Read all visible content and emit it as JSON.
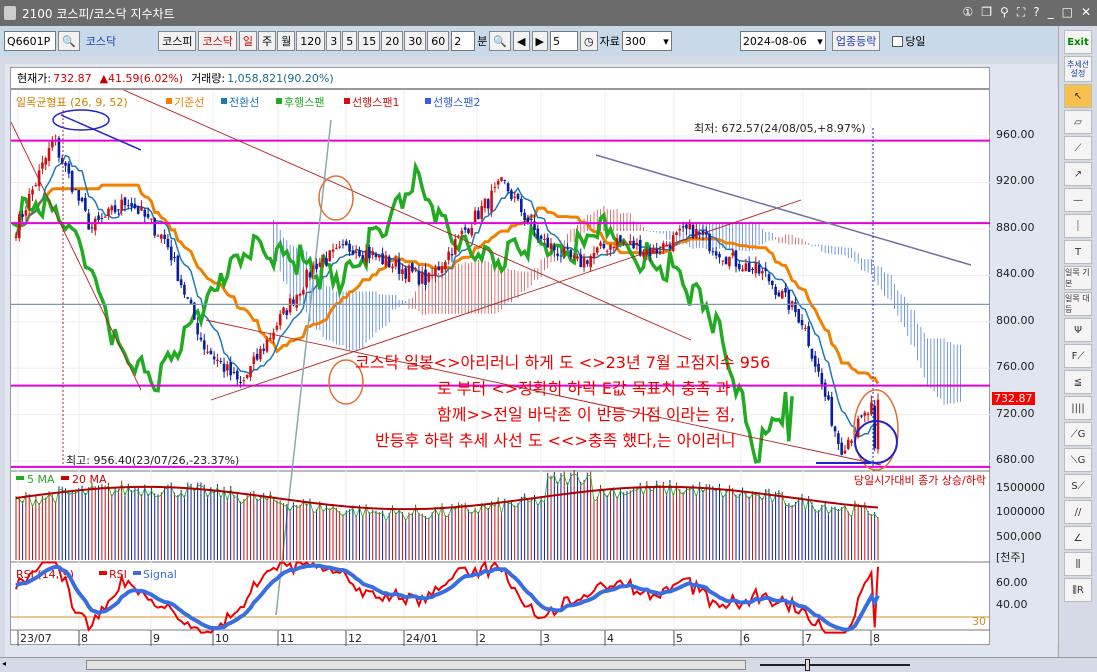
{
  "window": {
    "title": "2100 코스피/코스닥 지수차트",
    "controls": [
      "1",
      "restore",
      "pin",
      "fullscreen",
      "?",
      "minimize",
      "maximize",
      "close"
    ]
  },
  "toolbar": {
    "code": "Q6601P",
    "name": "코스닥",
    "market_buttons": [
      "코스피",
      "코스닥"
    ],
    "period_buttons": [
      "일",
      "주",
      "월",
      "120",
      "3",
      "5",
      "15",
      "20",
      "30",
      "60"
    ],
    "minute_value": "2",
    "minute_label": "분",
    "step_value": "5",
    "data_label": "자료",
    "data_count": "300",
    "date": "2024-08-06",
    "sector_button": "업종등락",
    "today_label": "당일"
  },
  "info": {
    "price_label": "현재가:",
    "price": "732.87",
    "change": "▲41.59(6.02%)",
    "volume_label": "거래량:",
    "volume": "1,058,821(90.20%)"
  },
  "legend": {
    "ichimoku": "일목균형표 (26, 9, 52)",
    "items": [
      {
        "label": "기준선",
        "color": "#f08000"
      },
      {
        "label": "전환선",
        "color": "#1e78b4"
      },
      {
        "label": "후행스팬",
        "color": "#22aa22"
      },
      {
        "label": "선행스팬1",
        "color": "#d01010"
      },
      {
        "label": "선행스팬2",
        "color": "#3060e0"
      }
    ]
  },
  "labels": {
    "low": "최저: 672.57(24/08/05,+8.97%)",
    "high": "최고: 956.40(23/07/26,-23.37%)",
    "current_tag": "732.87",
    "volume_legend_5": "5 MA",
    "volume_legend_20": "20 MA",
    "volume_note": "당일시가대비 종가 상승/하락",
    "volume_unit": "[천주]",
    "rsi_legend": "RSI (14, 9)",
    "rsi_label": "RSI",
    "signal_label": "Signal",
    "rsi_level": "30"
  },
  "annotation": [
    "코스닥 일봉<>아리러니 하게 도 <>23년 7월 고점지수 956",
    "로 부터 <>정확히 하락 E값 목표치 충족 과",
    "함께>>전일 바닥존 이 반등 기점 이라는 점,",
    "반등후 하락 추세 사선 도 <<>충족 했다,는 아이러니"
  ],
  "side_tools": [
    "Exit",
    "추세선 설정",
    "cursor",
    "eraser",
    "line",
    "arrow-line",
    "horizontal-line",
    "vertical-line",
    "T",
    "일목 기본",
    "일목 대등",
    "pitchfork",
    "fibonacci-fan",
    "speed-lines",
    "cycle-lines",
    "gann-fan",
    "gann-fan-reverse",
    "speed-fan",
    "parallel-lines",
    "angle",
    "tick-ruler",
    "tick-ruler-r"
  ],
  "chart_data": {
    "type": "candlestick",
    "price_axis": {
      "ticks": [
        "960.00",
        "920.00",
        "880.00",
        "840.00",
        "800.00",
        "760.00",
        "720.00",
        "680.00"
      ],
      "ylim": [
        672,
        968
      ]
    },
    "volume_axis": {
      "ticks": [
        "1500000",
        "1000000",
        "500,000"
      ]
    },
    "rsi_axis": {
      "ticks": [
        "60.00",
        "40.00"
      ],
      "level": 30
    },
    "x_ticks": [
      "23/07",
      "8",
      "9",
      "10",
      "11",
      "12",
      "24/01",
      "2",
      "3",
      "4",
      "5",
      "6",
      "7",
      "8"
    ],
    "close_anchors": [
      880,
      956,
      880,
      905,
      870,
      780,
      745,
      800,
      850,
      865,
      850,
      835,
      880,
      920,
      870,
      850,
      870,
      860,
      880,
      855,
      840,
      800,
      691,
      732.87
    ],
    "horizontal_lines": [
      956,
      885,
      815,
      745,
      675
    ],
    "colors": {
      "up": "#d01010",
      "down": "#0a1fa0",
      "hline": "#e000e0"
    }
  }
}
